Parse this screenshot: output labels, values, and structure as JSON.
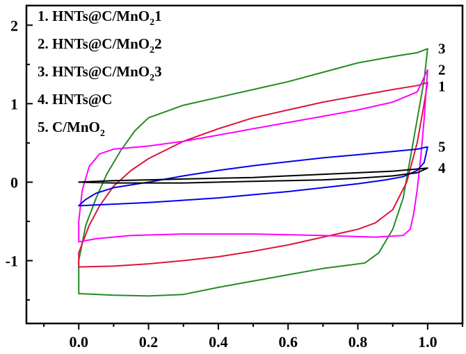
{
  "chart_data": {
    "type": "line",
    "title": "",
    "xlabel": "",
    "ylabel": "",
    "xlim": [
      -0.15,
      1.1
    ],
    "ylim": [
      -1.8,
      2.25
    ],
    "xticks": [
      0.0,
      0.2,
      0.4,
      0.6,
      0.8,
      1.0
    ],
    "xtick_labels": [
      "0.0",
      "0.2",
      "0.4",
      "0.6",
      "0.8",
      "1.0"
    ],
    "yticks": [
      -1,
      0,
      1,
      2
    ],
    "ytick_labels": [
      "-1",
      "0",
      "1",
      "2"
    ],
    "legend": {
      "position": "top-left",
      "entries": [
        {
          "num": "1.",
          "text": "HNTs@C/MnO",
          "sub": "2",
          "suffix": "1"
        },
        {
          "num": "2.",
          "text": "HNTs@C/MnO",
          "sub": "2",
          "suffix": "2"
        },
        {
          "num": "3.",
          "text": "HNTs@C/MnO",
          "sub": "2",
          "suffix": "3"
        },
        {
          "num": "4.",
          "text": "HNTs@C",
          "sub": "",
          "suffix": ""
        },
        {
          "num": "5.",
          "text": "C/MnO",
          "sub": "2",
          "suffix": ""
        }
      ]
    },
    "series": [
      {
        "label": "3",
        "color": "#228B22",
        "points": [
          [
            0.0,
            -1.42
          ],
          [
            0.0,
            -1.0
          ],
          [
            0.02,
            -0.55
          ],
          [
            0.05,
            -0.2
          ],
          [
            0.08,
            0.1
          ],
          [
            0.12,
            0.4
          ],
          [
            0.16,
            0.65
          ],
          [
            0.2,
            0.82
          ],
          [
            0.3,
            0.98
          ],
          [
            0.4,
            1.08
          ],
          [
            0.5,
            1.18
          ],
          [
            0.6,
            1.28
          ],
          [
            0.7,
            1.4
          ],
          [
            0.8,
            1.52
          ],
          [
            0.9,
            1.6
          ],
          [
            0.97,
            1.65
          ],
          [
            1.0,
            1.7
          ],
          [
            0.99,
            1.3
          ],
          [
            0.97,
            0.8
          ],
          [
            0.95,
            0.3
          ],
          [
            0.93,
            -0.2
          ],
          [
            0.9,
            -0.6
          ],
          [
            0.86,
            -0.9
          ],
          [
            0.82,
            -1.03
          ],
          [
            0.7,
            -1.1
          ],
          [
            0.6,
            -1.18
          ],
          [
            0.5,
            -1.26
          ],
          [
            0.4,
            -1.34
          ],
          [
            0.3,
            -1.43
          ],
          [
            0.2,
            -1.45
          ],
          [
            0.1,
            -1.44
          ],
          [
            0.0,
            -1.42
          ]
        ]
      },
      {
        "label": "1",
        "color": "#DC143C",
        "points": [
          [
            0.0,
            -1.08
          ],
          [
            0.0,
            -0.9
          ],
          [
            0.03,
            -0.55
          ],
          [
            0.06,
            -0.3
          ],
          [
            0.1,
            -0.05
          ],
          [
            0.15,
            0.15
          ],
          [
            0.2,
            0.3
          ],
          [
            0.3,
            0.52
          ],
          [
            0.4,
            0.68
          ],
          [
            0.5,
            0.82
          ],
          [
            0.6,
            0.92
          ],
          [
            0.7,
            1.02
          ],
          [
            0.8,
            1.1
          ],
          [
            0.9,
            1.18
          ],
          [
            0.97,
            1.23
          ],
          [
            1.0,
            1.27
          ],
          [
            0.99,
            1.0
          ],
          [
            0.97,
            0.5
          ],
          [
            0.94,
            0.0
          ],
          [
            0.9,
            -0.35
          ],
          [
            0.85,
            -0.52
          ],
          [
            0.8,
            -0.6
          ],
          [
            0.7,
            -0.7
          ],
          [
            0.6,
            -0.8
          ],
          [
            0.5,
            -0.88
          ],
          [
            0.4,
            -0.95
          ],
          [
            0.3,
            -1.0
          ],
          [
            0.2,
            -1.04
          ],
          [
            0.1,
            -1.07
          ],
          [
            0.0,
            -1.08
          ]
        ]
      },
      {
        "label": "2",
        "color": "#FF00FF",
        "points": [
          [
            0.0,
            -0.76
          ],
          [
            0.0,
            -0.5
          ],
          [
            0.01,
            -0.1
          ],
          [
            0.03,
            0.2
          ],
          [
            0.06,
            0.36
          ],
          [
            0.1,
            0.42
          ],
          [
            0.2,
            0.46
          ],
          [
            0.3,
            0.52
          ],
          [
            0.4,
            0.6
          ],
          [
            0.5,
            0.68
          ],
          [
            0.6,
            0.76
          ],
          [
            0.7,
            0.84
          ],
          [
            0.8,
            0.92
          ],
          [
            0.9,
            1.02
          ],
          [
            0.97,
            1.15
          ],
          [
            1.0,
            1.43
          ],
          [
            0.99,
            0.8
          ],
          [
            0.98,
            0.3
          ],
          [
            0.97,
            -0.1
          ],
          [
            0.96,
            -0.4
          ],
          [
            0.95,
            -0.6
          ],
          [
            0.93,
            -0.68
          ],
          [
            0.85,
            -0.7
          ],
          [
            0.7,
            -0.68
          ],
          [
            0.5,
            -0.66
          ],
          [
            0.3,
            -0.66
          ],
          [
            0.15,
            -0.68
          ],
          [
            0.05,
            -0.72
          ],
          [
            0.0,
            -0.76
          ]
        ]
      },
      {
        "label": "5",
        "color": "#0000EE",
        "points": [
          [
            0.0,
            -0.3
          ],
          [
            0.02,
            -0.22
          ],
          [
            0.05,
            -0.14
          ],
          [
            0.1,
            -0.07
          ],
          [
            0.2,
            0.0
          ],
          [
            0.3,
            0.08
          ],
          [
            0.4,
            0.15
          ],
          [
            0.5,
            0.21
          ],
          [
            0.6,
            0.26
          ],
          [
            0.7,
            0.31
          ],
          [
            0.8,
            0.35
          ],
          [
            0.9,
            0.39
          ],
          [
            0.97,
            0.42
          ],
          [
            1.0,
            0.45
          ],
          [
            0.99,
            0.25
          ],
          [
            0.97,
            0.15
          ],
          [
            0.93,
            0.07
          ],
          [
            0.88,
            0.03
          ],
          [
            0.8,
            -0.02
          ],
          [
            0.7,
            -0.07
          ],
          [
            0.6,
            -0.12
          ],
          [
            0.5,
            -0.16
          ],
          [
            0.4,
            -0.2
          ],
          [
            0.3,
            -0.23
          ],
          [
            0.2,
            -0.26
          ],
          [
            0.1,
            -0.28
          ],
          [
            0.0,
            -0.3
          ]
        ]
      },
      {
        "label": "4",
        "color": "#000000",
        "points": [
          [
            0.0,
            0.0
          ],
          [
            0.1,
            0.02
          ],
          [
            0.2,
            0.03
          ],
          [
            0.3,
            0.04
          ],
          [
            0.4,
            0.05
          ],
          [
            0.5,
            0.06
          ],
          [
            0.6,
            0.08
          ],
          [
            0.7,
            0.1
          ],
          [
            0.8,
            0.12
          ],
          [
            0.9,
            0.14
          ],
          [
            1.0,
            0.18
          ],
          [
            0.97,
            0.12
          ],
          [
            0.9,
            0.08
          ],
          [
            0.8,
            0.05
          ],
          [
            0.7,
            0.03
          ],
          [
            0.6,
            0.02
          ],
          [
            0.5,
            0.01
          ],
          [
            0.4,
            0.0
          ],
          [
            0.3,
            -0.01
          ],
          [
            0.2,
            -0.01
          ],
          [
            0.1,
            -0.01
          ],
          [
            0.0,
            0.0
          ]
        ]
      }
    ]
  }
}
